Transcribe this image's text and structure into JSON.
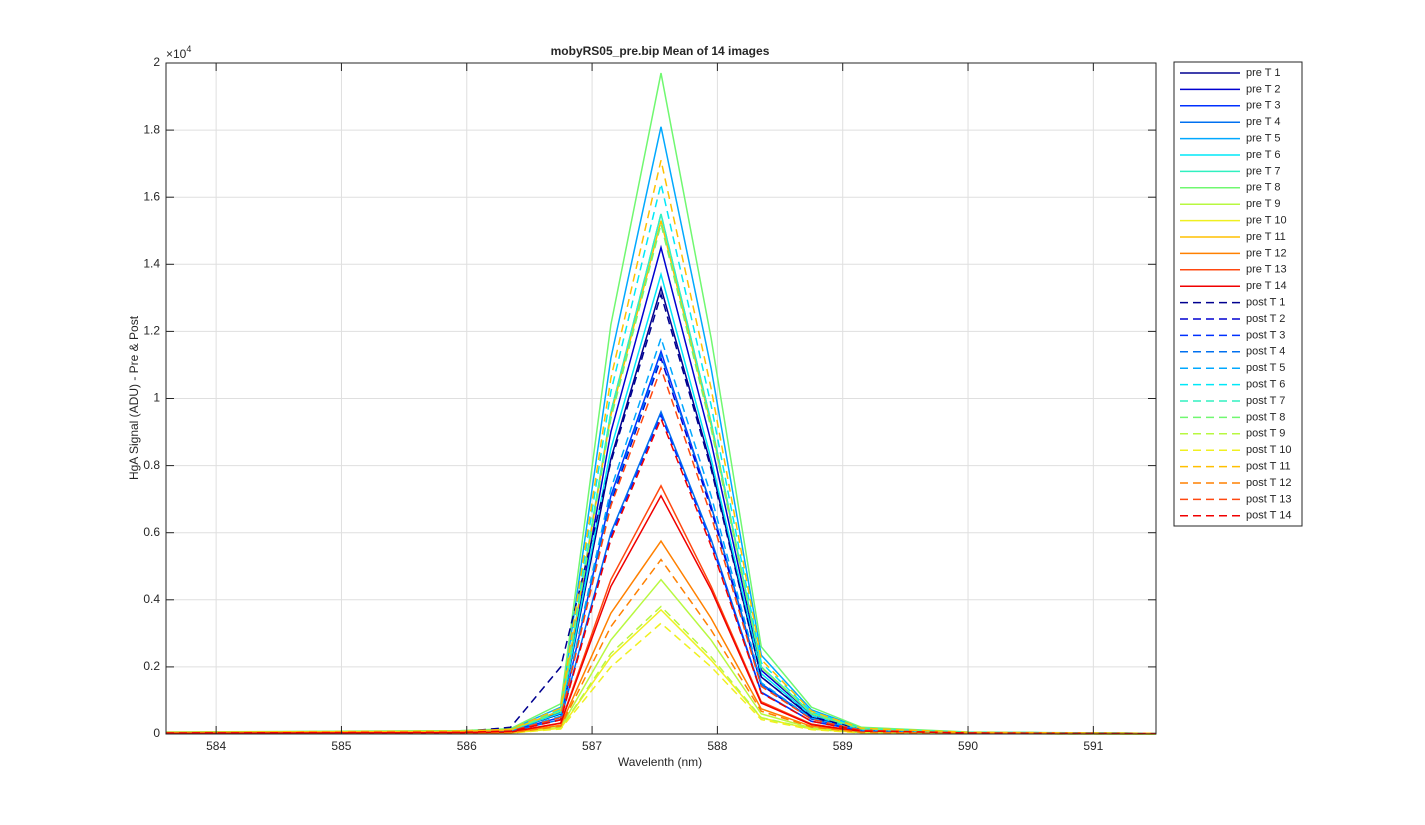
{
  "chart_data": {
    "type": "line",
    "title": "mobyRS05_pre.bip  Mean of 14 images",
    "x_label": "Wavelenth (nm)",
    "y_label": "HgA Signal (ADU) - Pre & Post",
    "y_exponent": {
      "base": "×10",
      "power": "4"
    },
    "xlim": [
      583.6,
      591.5
    ],
    "xticks": [
      584,
      585,
      586,
      587,
      588,
      589,
      590,
      591
    ],
    "ylim": [
      0,
      2
    ],
    "yticks": [
      0,
      0.2,
      0.4,
      0.6,
      0.8,
      1,
      1.2,
      1.4,
      1.6,
      1.8,
      2
    ],
    "grid": true,
    "legend_position": "outside-right",
    "x": [
      583.6,
      585.95,
      586.35,
      586.75,
      587.15,
      587.55,
      587.95,
      588.35,
      588.75,
      589.15,
      590.0,
      591.5
    ],
    "series": [
      {
        "name": "pre T 1",
        "color": "#000090",
        "line_style": "solid",
        "values": [
          0.004,
          0.007,
          0.011,
          0.06,
          0.82,
          1.33,
          0.8,
          0.17,
          0.05,
          0.013,
          0.004,
          0.001
        ]
      },
      {
        "name": "pre T 2",
        "color": "#0000d0",
        "line_style": "solid",
        "values": [
          0.004,
          0.007,
          0.012,
          0.065,
          0.9,
          1.45,
          0.87,
          0.19,
          0.06,
          0.015,
          0.004,
          0.001
        ]
      },
      {
        "name": "pre T 3",
        "color": "#0030ff",
        "line_style": "solid",
        "values": [
          0.003,
          0.006,
          0.009,
          0.05,
          0.71,
          1.14,
          0.68,
          0.15,
          0.046,
          0.011,
          0.003,
          0.001
        ]
      },
      {
        "name": "pre T 4",
        "color": "#0070f0",
        "line_style": "solid",
        "values": [
          0.003,
          0.005,
          0.008,
          0.043,
          0.6,
          0.96,
          0.58,
          0.125,
          0.038,
          0.01,
          0.003,
          0.001
        ]
      },
      {
        "name": "pre T 5",
        "color": "#00a8ff",
        "line_style": "solid",
        "values": [
          0.005,
          0.009,
          0.014,
          0.08,
          1.12,
          1.81,
          1.09,
          0.235,
          0.072,
          0.018,
          0.005,
          0.002
        ]
      },
      {
        "name": "pre T 6",
        "color": "#00e8f8",
        "line_style": "solid",
        "values": [
          0.004,
          0.007,
          0.011,
          0.062,
          0.85,
          1.37,
          0.82,
          0.18,
          0.055,
          0.014,
          0.004,
          0.001
        ]
      },
      {
        "name": "pre T 7",
        "color": "#30f0c0",
        "line_style": "solid",
        "values": [
          0.005,
          0.008,
          0.012,
          0.07,
          0.96,
          1.55,
          0.93,
          0.2,
          0.062,
          0.016,
          0.005,
          0.002
        ]
      },
      {
        "name": "pre T 8",
        "color": "#70f870",
        "line_style": "solid",
        "values": [
          0.006,
          0.01,
          0.016,
          0.09,
          1.22,
          1.97,
          1.18,
          0.26,
          0.08,
          0.02,
          0.006,
          0.002
        ]
      },
      {
        "name": "pre T 9",
        "color": "#b8f840",
        "line_style": "solid",
        "values": [
          0.001,
          0.002,
          0.004,
          0.02,
          0.28,
          0.46,
          0.28,
          0.06,
          0.018,
          0.005,
          0.001,
          0
        ]
      },
      {
        "name": "pre T 10",
        "color": "#f0f020",
        "line_style": "solid",
        "values": [
          0.001,
          0.002,
          0.003,
          0.017,
          0.23,
          0.37,
          0.22,
          0.048,
          0.015,
          0.004,
          0.001,
          0
        ]
      },
      {
        "name": "pre T 11",
        "color": "#ffc000",
        "line_style": "solid",
        "values": [
          0.005,
          0.008,
          0.012,
          0.069,
          0.95,
          1.53,
          0.92,
          0.2,
          0.061,
          0.015,
          0.005,
          0.002
        ]
      },
      {
        "name": "pre T 12",
        "color": "#ff8000",
        "line_style": "solid",
        "values": [
          0.002,
          0.003,
          0.005,
          0.026,
          0.36,
          0.575,
          0.345,
          0.075,
          0.023,
          0.006,
          0.002,
          0.001
        ]
      },
      {
        "name": "pre T 13",
        "color": "#ff4810",
        "line_style": "solid",
        "values": [
          0.002,
          0.004,
          0.006,
          0.033,
          0.46,
          0.74,
          0.44,
          0.096,
          0.03,
          0.007,
          0.002,
          0.001
        ]
      },
      {
        "name": "pre T 14",
        "color": "#f00000",
        "line_style": "solid",
        "values": [
          0.002,
          0.004,
          0.006,
          0.032,
          0.44,
          0.71,
          0.43,
          0.092,
          0.028,
          0.007,
          0.002,
          0.001
        ]
      },
      {
        "name": "post T 1",
        "color": "#000090",
        "line_style": "dashed",
        "values": [
          0.004,
          0.007,
          0.02,
          0.2,
          0.81,
          1.31,
          0.79,
          0.17,
          0.052,
          0.013,
          0.004,
          0.001
        ]
      },
      {
        "name": "post T 2",
        "color": "#0000d0",
        "line_style": "dashed",
        "values": [
          0.003,
          0.006,
          0.009,
          0.05,
          0.69,
          1.12,
          0.67,
          0.146,
          0.045,
          0.011,
          0.003,
          0.001
        ]
      },
      {
        "name": "post T 3",
        "color": "#0030ff",
        "line_style": "dashed",
        "values": [
          0.003,
          0.005,
          0.008,
          0.043,
          0.59,
          0.95,
          0.57,
          0.124,
          0.038,
          0.01,
          0.003,
          0.001
        ]
      },
      {
        "name": "post T 4",
        "color": "#0070f0",
        "line_style": "dashed",
        "values": [
          0.003,
          0.006,
          0.009,
          0.051,
          0.7,
          1.13,
          0.68,
          0.147,
          0.045,
          0.011,
          0.003,
          0.001
        ]
      },
      {
        "name": "post T 5",
        "color": "#00a8ff",
        "line_style": "dashed",
        "values": [
          0.004,
          0.006,
          0.009,
          0.053,
          0.73,
          1.18,
          0.71,
          0.153,
          0.047,
          0.012,
          0.004,
          0.001
        ]
      },
      {
        "name": "post T 6",
        "color": "#00e8f8",
        "line_style": "dashed",
        "values": [
          0.005,
          0.008,
          0.013,
          0.074,
          1.02,
          1.64,
          0.98,
          0.213,
          0.066,
          0.016,
          0.005,
          0.002
        ]
      },
      {
        "name": "post T 7",
        "color": "#30f0c0",
        "line_style": "dashed",
        "values": [
          0.005,
          0.008,
          0.012,
          0.07,
          0.96,
          1.55,
          0.93,
          0.2,
          0.062,
          0.016,
          0.005,
          0.002
        ]
      },
      {
        "name": "post T 8",
        "color": "#70f870",
        "line_style": "dashed",
        "values": [
          0.005,
          0.008,
          0.012,
          0.068,
          0.94,
          1.52,
          0.91,
          0.198,
          0.061,
          0.015,
          0.005,
          0.002
        ]
      },
      {
        "name": "post T 9",
        "color": "#b8f840",
        "line_style": "dashed",
        "values": [
          0.001,
          0.002,
          0.003,
          0.017,
          0.24,
          0.38,
          0.23,
          0.049,
          0.015,
          0.004,
          0.001,
          0
        ]
      },
      {
        "name": "post T 10",
        "color": "#f0f020",
        "line_style": "dashed",
        "values": [
          0.001,
          0.002,
          0.003,
          0.015,
          0.2,
          0.33,
          0.2,
          0.043,
          0.013,
          0.003,
          0.001,
          0
        ]
      },
      {
        "name": "post T 11",
        "color": "#ffc000",
        "line_style": "dashed",
        "values": [
          0.005,
          0.009,
          0.014,
          0.077,
          1.06,
          1.71,
          1.03,
          0.222,
          0.068,
          0.017,
          0.005,
          0.002
        ]
      },
      {
        "name": "post T 12",
        "color": "#ff8000",
        "line_style": "dashed",
        "values": [
          0.002,
          0.003,
          0.004,
          0.023,
          0.32,
          0.52,
          0.31,
          0.068,
          0.021,
          0.005,
          0.002,
          0.001
        ]
      },
      {
        "name": "post T 13",
        "color": "#ff4810",
        "line_style": "dashed",
        "values": [
          0.003,
          0.005,
          0.009,
          0.049,
          0.68,
          1.09,
          0.65,
          0.142,
          0.044,
          0.011,
          0.003,
          0.001
        ]
      },
      {
        "name": "post T 14",
        "color": "#f00000",
        "line_style": "dashed",
        "values": [
          0.003,
          0.005,
          0.008,
          0.042,
          0.58,
          0.94,
          0.56,
          0.122,
          0.038,
          0.009,
          0.003,
          0.001
        ]
      }
    ]
  }
}
